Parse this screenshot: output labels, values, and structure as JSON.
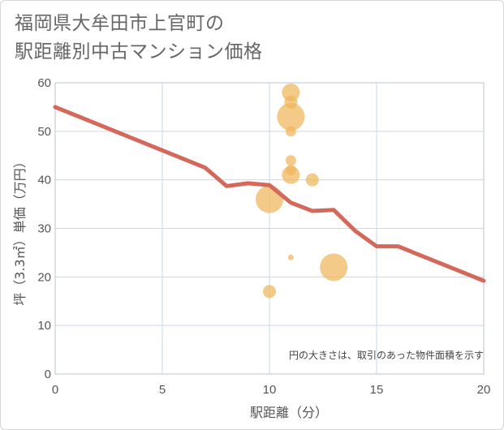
{
  "title_line1": "福岡県大牟田市上官町の",
  "title_line2": "駅距離別中古マンション価格",
  "note": "円の大きさは、取引のあった物件面積を示す",
  "chart_data": {
    "type": "scatter",
    "xlabel": "駅距離（分）",
    "ylabel": "坪（3.3㎡）単価（万円）",
    "xlim": [
      0,
      20
    ],
    "ylim": [
      0,
      60
    ],
    "xticks": [
      0,
      5,
      10,
      15,
      20
    ],
    "yticks": [
      0,
      10,
      20,
      30,
      40,
      50,
      60
    ],
    "grid": true,
    "colors": {
      "bubble": "#f0b65a",
      "line": "#d4685a",
      "grid": "#c9d8e6"
    },
    "points": [
      {
        "x": 10,
        "y": 36,
        "size": 5
      },
      {
        "x": 10,
        "y": 17,
        "size": 2
      },
      {
        "x": 11,
        "y": 58,
        "size": 3
      },
      {
        "x": 11,
        "y": 56,
        "size": 2
      },
      {
        "x": 11,
        "y": 53,
        "size": 5
      },
      {
        "x": 11,
        "y": 50,
        "size": 1.5
      },
      {
        "x": 11,
        "y": 44,
        "size": 1.5
      },
      {
        "x": 11,
        "y": 42,
        "size": 1.5
      },
      {
        "x": 11,
        "y": 41,
        "size": 3
      },
      {
        "x": 11,
        "y": 24,
        "size": 0.5
      },
      {
        "x": 12,
        "y": 40,
        "size": 2
      },
      {
        "x": 13,
        "y": 22,
        "size": 5
      }
    ],
    "trend": [
      {
        "x": 0,
        "y": 55.0
      },
      {
        "x": 7,
        "y": 42.5
      },
      {
        "x": 8,
        "y": 38.7
      },
      {
        "x": 9,
        "y": 39.3
      },
      {
        "x": 10,
        "y": 38.9
      },
      {
        "x": 11,
        "y": 35.3
      },
      {
        "x": 12,
        "y": 33.6
      },
      {
        "x": 13,
        "y": 33.8
      },
      {
        "x": 14,
        "y": 29.5
      },
      {
        "x": 15,
        "y": 26.3
      },
      {
        "x": 16,
        "y": 26.3
      },
      {
        "x": 20,
        "y": 19.2
      }
    ]
  }
}
